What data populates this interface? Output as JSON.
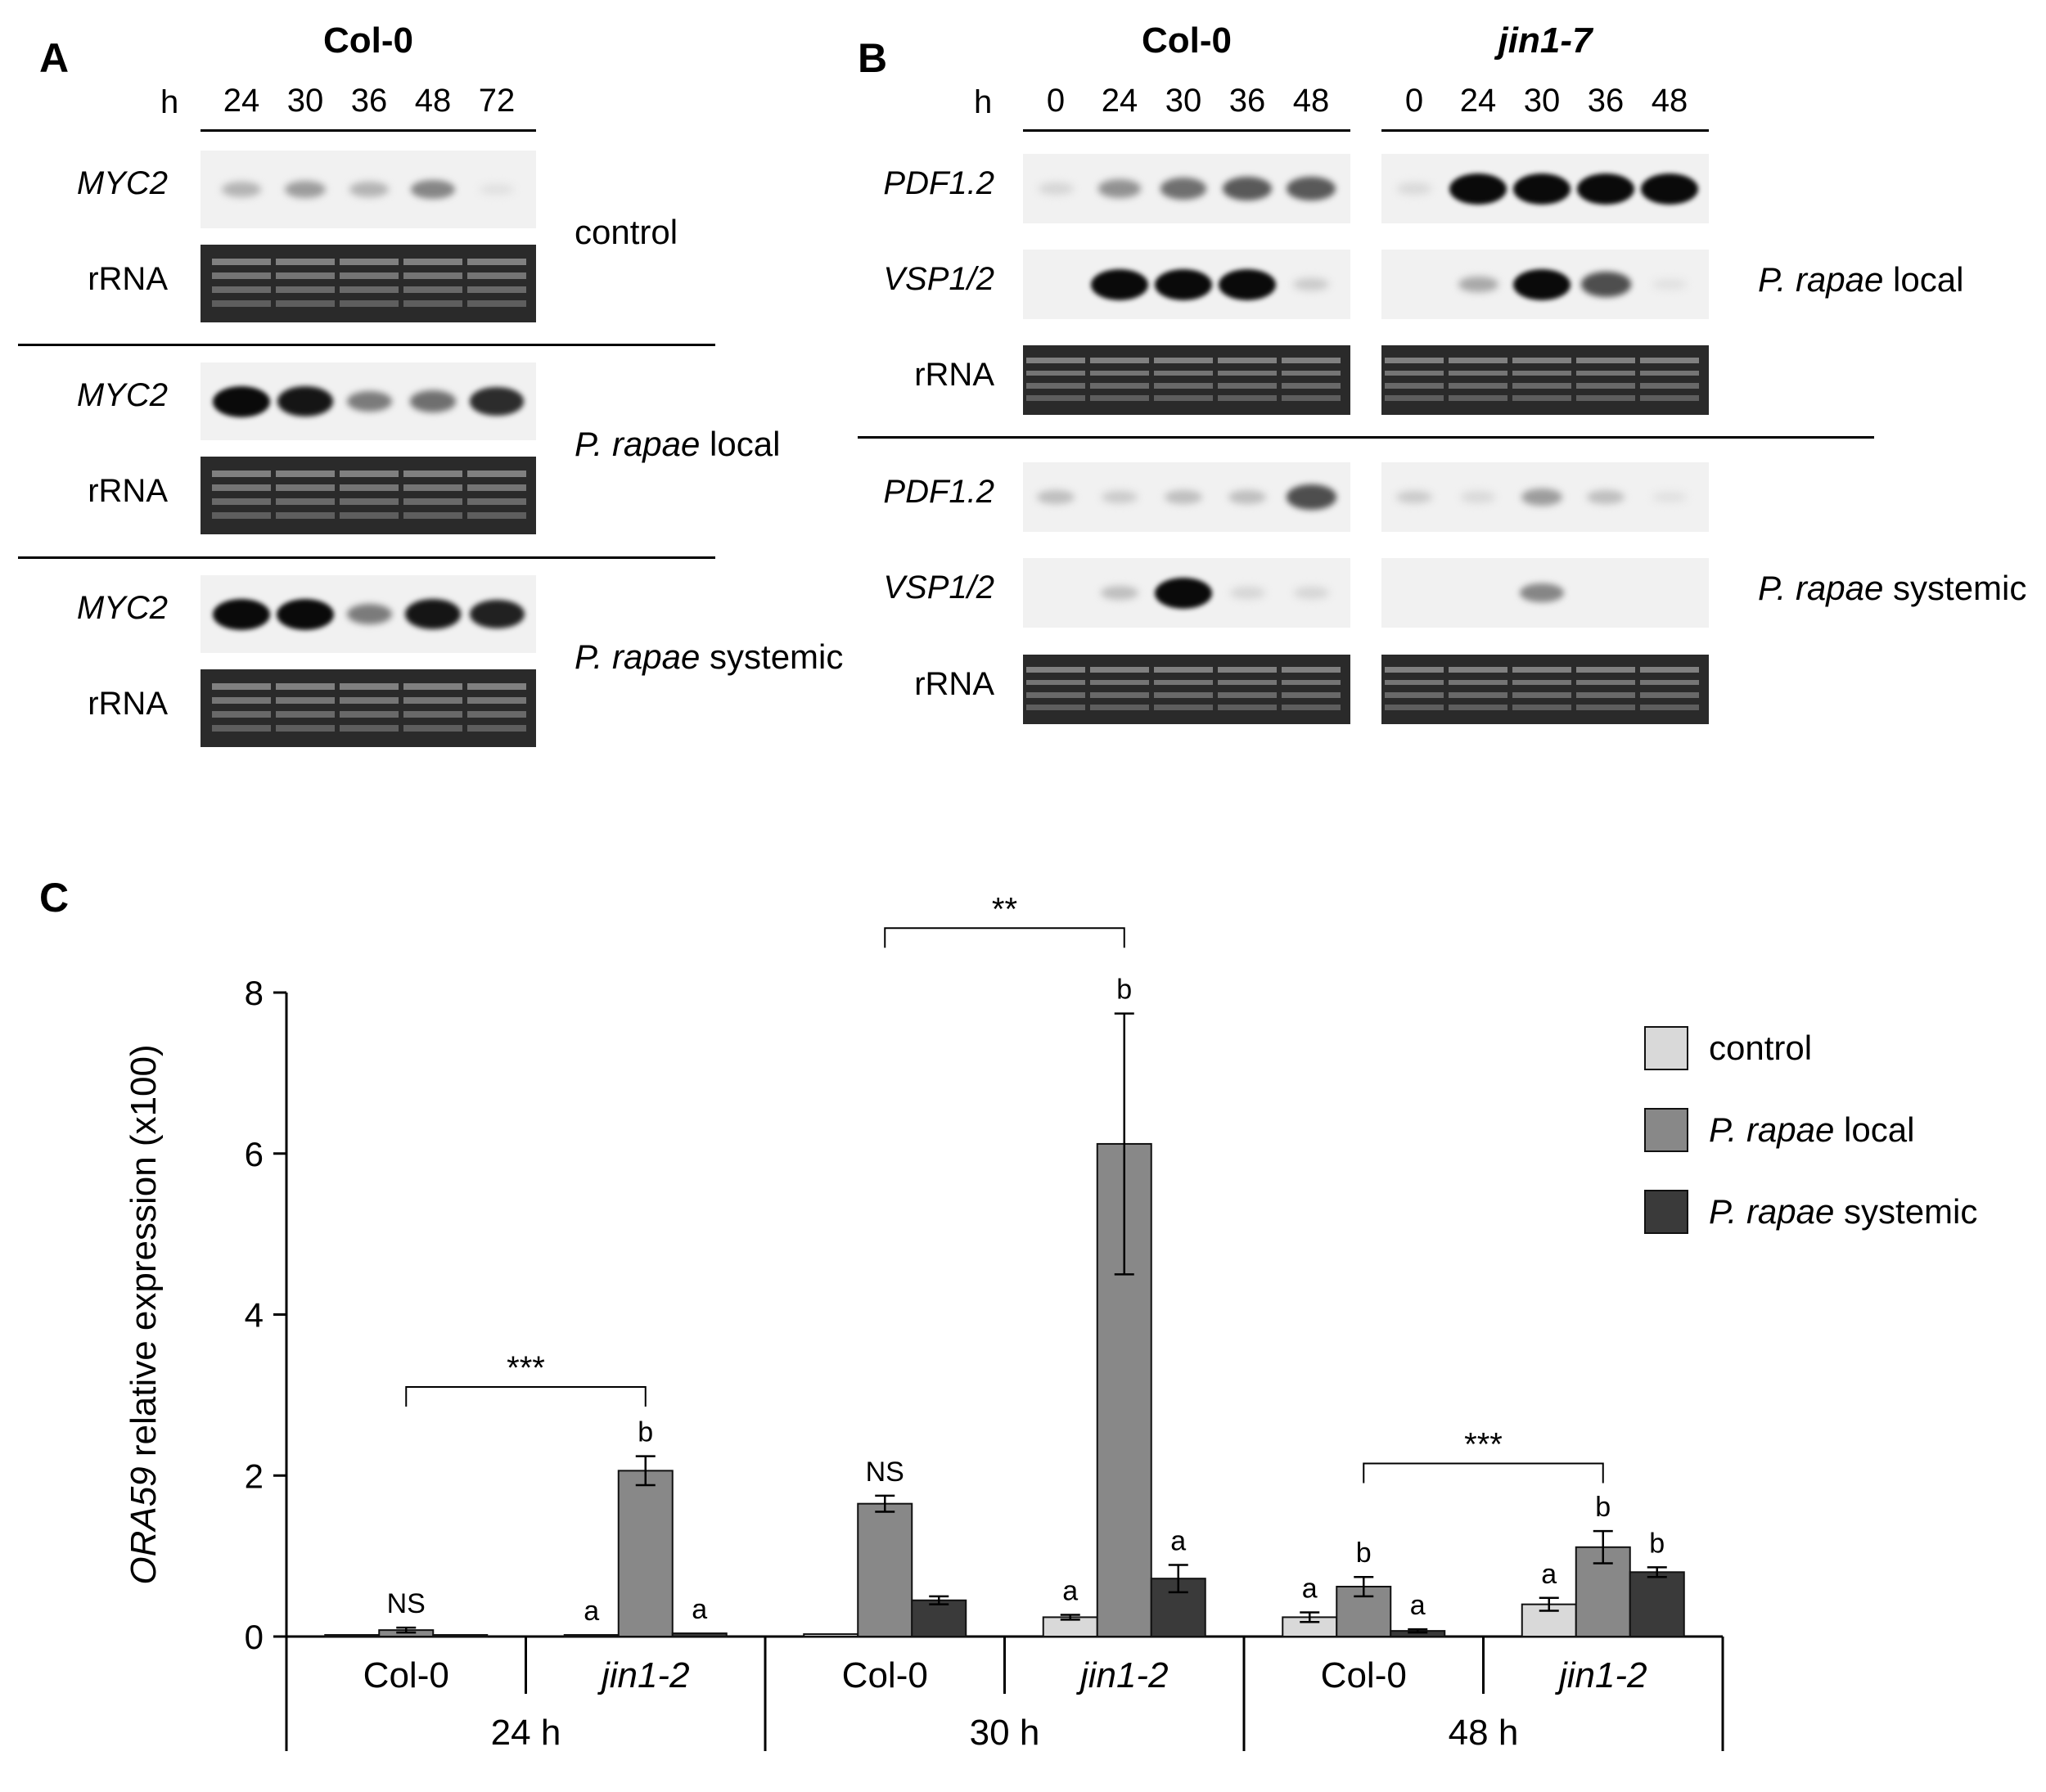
{
  "panel_a": {
    "letter": "A",
    "header": "Col-0",
    "time_label": "h",
    "times": [
      "24",
      "30",
      "36",
      "48",
      "72"
    ],
    "blots": [
      {
        "gene": "MYC2",
        "ref": "rRNA",
        "condition": "control",
        "condition_italic": "",
        "intensity": [
          0.25,
          0.35,
          0.25,
          0.45,
          0.05
        ]
      },
      {
        "gene": "MYC2",
        "ref": "rRNA",
        "condition": " local",
        "condition_italic": "P. rapae",
        "intensity": [
          1.0,
          0.95,
          0.5,
          0.55,
          0.85
        ]
      },
      {
        "gene": "MYC2",
        "ref": "rRNA",
        "condition": " systemic",
        "condition_italic": "P. rapae",
        "intensity": [
          1.0,
          1.0,
          0.5,
          0.95,
          0.9
        ]
      }
    ]
  },
  "panel_b": {
    "letter": "B",
    "headers": [
      "Col-0",
      "jin1-7"
    ],
    "time_label": "h",
    "times": [
      "0",
      "24",
      "30",
      "36",
      "48"
    ],
    "genes": {
      "pdf": "PDF1.2",
      "vsp": "VSP1/2",
      "ref": "rRNA"
    },
    "conditions": [
      {
        "italic": "P. rapae",
        "rest": " local"
      },
      {
        "italic": "P. rapae",
        "rest": " systemic"
      }
    ],
    "local": {
      "pdf": {
        "col0": [
          0.1,
          0.4,
          0.55,
          0.65,
          0.65
        ],
        "jin": [
          0.08,
          1.0,
          1.0,
          1.0,
          1.0
        ]
      },
      "vsp": {
        "col0": [
          0.0,
          1.0,
          1.0,
          1.0,
          0.15
        ],
        "jin": [
          0.0,
          0.3,
          1.0,
          0.7,
          0.05
        ]
      }
    },
    "systemic": {
      "pdf": {
        "col0": [
          0.2,
          0.15,
          0.2,
          0.2,
          0.7
        ],
        "jin": [
          0.15,
          0.08,
          0.35,
          0.2,
          0.05
        ]
      },
      "vsp": {
        "col0": [
          0.0,
          0.2,
          1.0,
          0.1,
          0.1
        ],
        "jin": [
          0.0,
          0.0,
          0.45,
          0.0,
          0.0
        ]
      }
    }
  },
  "panel_c": {
    "letter": "C",
    "chart_data": {
      "type": "bar",
      "ylabel_italic": "ORA59",
      "ylabel_rest": " relative expression (x100)",
      "ylim": [
        0,
        8
      ],
      "yticks": [
        0,
        2,
        4,
        6,
        8
      ],
      "time_groups": [
        "24 h",
        "30 h",
        "48 h"
      ],
      "genotypes": [
        "Col-0",
        "jin1-2"
      ],
      "series": [
        {
          "name": "control",
          "name_italic": "",
          "color": "#d9d9d9"
        },
        {
          "name": " local",
          "name_italic": "P. rapae",
          "color": "#888888"
        },
        {
          "name": " systemic",
          "name_italic": "P. rapae",
          "color": "#3a3a3a"
        }
      ],
      "groups": [
        {
          "time": "24 h",
          "genotype": "Col-0",
          "values": [
            0.02,
            0.08,
            0.02
          ],
          "errors": [
            0.0,
            0.03,
            0.0
          ],
          "labels": [
            "",
            "NS",
            ""
          ],
          "label_anchor": 1
        },
        {
          "time": "24 h",
          "genotype": "jin1-2",
          "values": [
            0.02,
            2.06,
            0.04
          ],
          "errors": [
            0.0,
            0.18,
            0.0
          ],
          "labels": [
            "a",
            "b",
            "a"
          ]
        },
        {
          "time": "30 h",
          "genotype": "Col-0",
          "values": [
            0.03,
            1.65,
            0.45
          ],
          "errors": [
            0.0,
            0.1,
            0.05
          ],
          "labels": [
            "",
            "NS",
            ""
          ],
          "label_anchor": 1
        },
        {
          "time": "30 h",
          "genotype": "jin1-2",
          "values": [
            0.24,
            6.12,
            0.72
          ],
          "errors": [
            0.03,
            1.62,
            0.17
          ],
          "labels": [
            "a",
            "b",
            "a"
          ]
        },
        {
          "time": "48 h",
          "genotype": "Col-0",
          "values": [
            0.24,
            0.62,
            0.07
          ],
          "errors": [
            0.06,
            0.12,
            0.02
          ],
          "labels": [
            "a",
            "b",
            "a"
          ]
        },
        {
          "time": "48 h",
          "genotype": "jin1-2",
          "values": [
            0.4,
            1.11,
            0.8
          ],
          "errors": [
            0.08,
            0.2,
            0.06
          ],
          "labels": [
            "a",
            "b",
            "b"
          ]
        }
      ],
      "significance": [
        {
          "text": "***",
          "from_group": 0,
          "to_group": 1,
          "level": 3.1
        },
        {
          "text": "**",
          "from_group": 2,
          "to_group": 3,
          "level": 8.8
        },
        {
          "text": "***",
          "from_group": 4,
          "to_group": 5,
          "level": 2.15
        }
      ]
    }
  }
}
